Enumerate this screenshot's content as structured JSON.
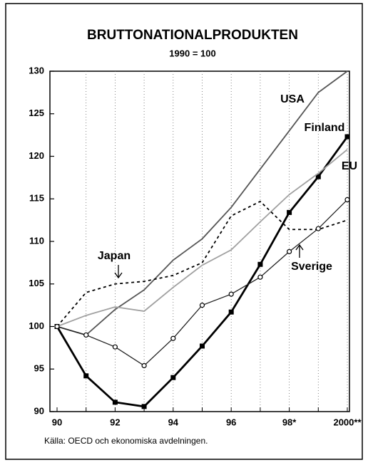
{
  "chart_data": {
    "type": "line",
    "title": "BRUTTONATIONALPRODUKTEN",
    "subtitle": "1990 = 100",
    "source": "Källa: OECD och ekonomiska avdelningen.",
    "categories": [
      "90",
      null,
      "92",
      null,
      "94",
      null,
      "96",
      null,
      "98*",
      null,
      "2000**"
    ],
    "ylim": [
      90,
      130
    ],
    "yticks": [
      90,
      95,
      100,
      105,
      110,
      115,
      120,
      125,
      130
    ],
    "grid": true,
    "series": [
      {
        "name": "USA",
        "color": "#555555",
        "values": [
          100,
          99.0,
          102.0,
          104.3,
          107.8,
          110.3,
          114.0,
          118.5,
          123.0,
          127.5,
          130
        ]
      },
      {
        "name": "Finland",
        "color": "#000000",
        "marker": "square",
        "values": [
          100,
          94.2,
          91.1,
          90.6,
          94.0,
          97.7,
          101.7,
          107.3,
          113.4,
          117.6,
          122.3
        ]
      },
      {
        "name": "EU",
        "color": "#a0a0a0",
        "values": [
          100,
          101.3,
          102.3,
          101.8,
          104.6,
          107.2,
          109.0,
          112.3,
          115.5,
          118.0,
          120.8
        ]
      },
      {
        "name": "Japan",
        "color": "#000000",
        "dash": true,
        "values": [
          100,
          104.0,
          105.0,
          105.3,
          106.0,
          107.5,
          113.0,
          114.7,
          111.4,
          111.4,
          112.5
        ]
      },
      {
        "name": "Sverige",
        "color": "#222222",
        "marker": "circle",
        "values": [
          100,
          99.0,
          97.6,
          95.4,
          98.6,
          102.5,
          103.8,
          105.8,
          108.8,
          111.5,
          114.9
        ]
      }
    ]
  }
}
